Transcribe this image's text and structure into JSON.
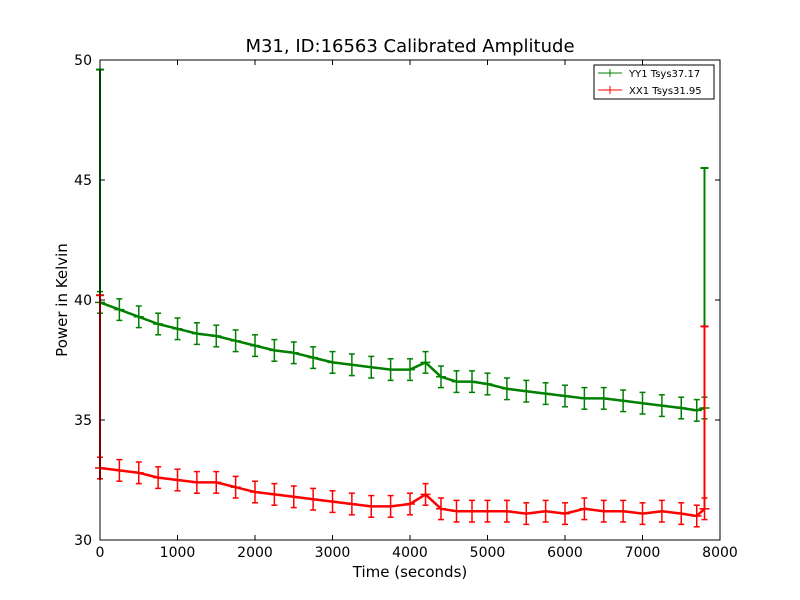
{
  "chart_data": {
    "type": "line",
    "title": "M31, ID:16563 Calibrated Amplitude",
    "xlabel": "Time (seconds)",
    "ylabel": "Power in Kelvin",
    "xlim": [
      0,
      8000
    ],
    "ylim": [
      30,
      50
    ],
    "xticks": [
      0,
      1000,
      2000,
      3000,
      4000,
      5000,
      6000,
      7000,
      8000
    ],
    "yticks": [
      30,
      35,
      40,
      45,
      50
    ],
    "xtick_labels": [
      "0",
      "1000",
      "2000",
      "3000",
      "4000",
      "5000",
      "6000",
      "7000",
      "8000"
    ],
    "ytick_labels": [
      "30",
      "35",
      "40",
      "45",
      "50"
    ],
    "grid": false,
    "legend_position": "top-right",
    "series": [
      {
        "name": "YY1 Tsys37.17",
        "color": "#008000",
        "error_bars": true,
        "x": [
          0,
          250,
          500,
          750,
          1000,
          1250,
          1500,
          1750,
          2000,
          2250,
          2500,
          2750,
          3000,
          3250,
          3500,
          3750,
          4000,
          4200,
          4400,
          4600,
          4800,
          5000,
          5250,
          5500,
          5750,
          6000,
          6250,
          6500,
          6750,
          7000,
          7250,
          7500,
          7700,
          7800
        ],
        "y": [
          39.9,
          39.6,
          39.3,
          39.0,
          38.8,
          38.6,
          38.5,
          38.3,
          38.1,
          37.9,
          37.8,
          37.6,
          37.4,
          37.3,
          37.2,
          37.1,
          37.1,
          37.4,
          36.8,
          36.6,
          36.6,
          36.5,
          36.3,
          36.2,
          36.1,
          36.0,
          35.9,
          35.9,
          35.8,
          35.7,
          35.6,
          35.5,
          35.4,
          35.5
        ],
        "spikes": [
          {
            "x": 0,
            "y_low": 32.6,
            "y_high": 49.6
          },
          {
            "x": 7800,
            "y_low": 35.4,
            "y_high": 45.5
          }
        ]
      },
      {
        "name": "XX1 Tsys31.95",
        "color": "#ff0000",
        "error_bars": true,
        "x": [
          0,
          250,
          500,
          750,
          1000,
          1250,
          1500,
          1750,
          2000,
          2250,
          2500,
          2750,
          3000,
          3250,
          3500,
          3750,
          4000,
          4200,
          4400,
          4600,
          4800,
          5000,
          5250,
          5500,
          5750,
          6000,
          6250,
          6500,
          6750,
          7000,
          7250,
          7500,
          7700,
          7800
        ],
        "y": [
          33.0,
          32.9,
          32.8,
          32.6,
          32.5,
          32.4,
          32.4,
          32.2,
          32.0,
          31.9,
          31.8,
          31.7,
          31.6,
          31.5,
          31.4,
          31.4,
          31.5,
          31.9,
          31.3,
          31.2,
          31.2,
          31.2,
          31.2,
          31.1,
          31.2,
          31.1,
          31.3,
          31.2,
          31.2,
          31.1,
          31.2,
          31.1,
          31.0,
          31.3
        ],
        "spikes": [
          {
            "x": 0,
            "y_low": 32.5,
            "y_high": 40.2
          },
          {
            "x": 7800,
            "y_low": 31.3,
            "y_high": 38.9
          }
        ]
      }
    ]
  }
}
